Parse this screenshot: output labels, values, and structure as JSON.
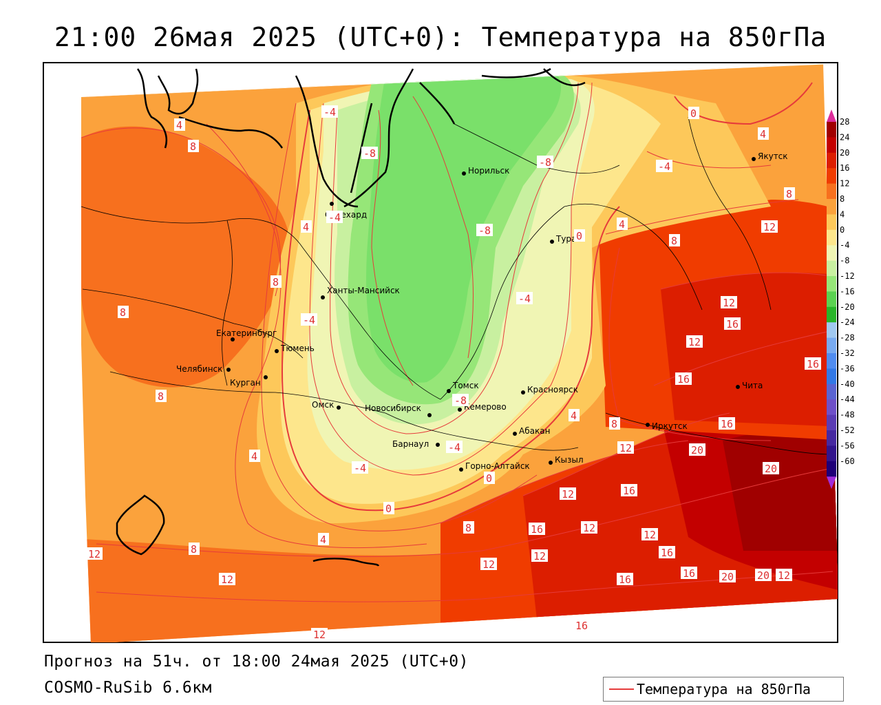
{
  "title": "21:00 26мая 2025 (UTC+0): Температура на 850гПа",
  "forecast_info": "Прогноз на 51ч. от 18:00 24мая 2025 (UTC+0)",
  "model": "COSMO-RuSib 6.6км",
  "legend": {
    "line_label": "Температура на 850гПа",
    "line_color": "#e63b3b"
  },
  "colorbar": {
    "labels": [
      "28",
      "24",
      "20",
      "16",
      "12",
      "8",
      "4",
      "0",
      "-4",
      "-8",
      "-12",
      "-16",
      "-20",
      "-24",
      "-28",
      "-32",
      "-36",
      "-40",
      "-44",
      "-48",
      "-52",
      "-56",
      "-60"
    ],
    "colors": [
      "#a00000",
      "#c30000",
      "#dc1e00",
      "#f03c00",
      "#f7701e",
      "#fba23c",
      "#fdc85a",
      "#fde68c",
      "#f0f5b4",
      "#c8f0a0",
      "#96e678",
      "#5ad250",
      "#28b428",
      "#a0c8f0",
      "#78aaf0",
      "#508cf0",
      "#3278e6",
      "#5a64d2",
      "#6e50c8",
      "#5a3cb4",
      "#4628a0",
      "#32148c",
      "#1e0078"
    ],
    "top_color": "#dd2d9b",
    "bottom_color": "#a02ddc"
  },
  "cities": [
    {
      "name": "Якутск"
    },
    {
      "name": "Норильск"
    },
    {
      "name": "Салехард"
    },
    {
      "name": "Тура"
    },
    {
      "name": "Ханты-Мансийск"
    },
    {
      "name": "Екатеринбург"
    },
    {
      "name": "Тюмень"
    },
    {
      "name": "Челябинск"
    },
    {
      "name": "Курган"
    },
    {
      "name": "Омск"
    },
    {
      "name": "Томск"
    },
    {
      "name": "Красноярск"
    },
    {
      "name": "Новосибирск"
    },
    {
      "name": "Кемерово"
    },
    {
      "name": "Барнаул"
    },
    {
      "name": "Абакан"
    },
    {
      "name": "Горно-Алтайск"
    },
    {
      "name": "Кызыл"
    },
    {
      "name": "Иркутск"
    },
    {
      "name": "Чита"
    }
  ],
  "contour_labels": [
    "-4",
    "-8",
    "0",
    "4",
    "8",
    "-8",
    "-4",
    "-8",
    "-4",
    "-4",
    "4",
    "8",
    "0",
    "4",
    "8",
    "8",
    "8",
    "8",
    "4",
    "8",
    "-4",
    "-4",
    "-8",
    "-4",
    "0",
    "4",
    "4",
    "0",
    "4",
    "8",
    "12",
    "12",
    "16",
    "16",
    "12",
    "16",
    "20",
    "20",
    "16",
    "12",
    "12",
    "16",
    "12",
    "16",
    "12",
    "12",
    "16",
    "16",
    "12",
    "20",
    "20",
    "12",
    "16",
    "12",
    "12",
    "12",
    "16",
    "8"
  ]
}
